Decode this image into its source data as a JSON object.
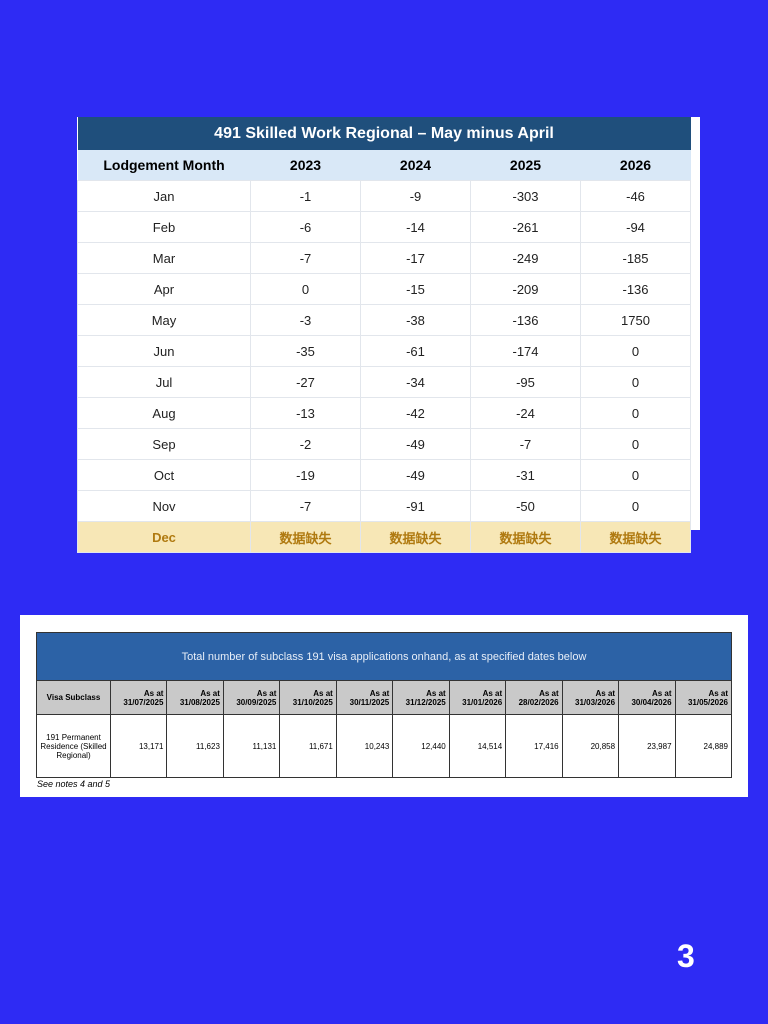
{
  "table1": {
    "title": "491 Skilled Work Regional – May minus April",
    "header": [
      "Lodgement Month",
      "2023",
      "2024",
      "2025",
      "2026"
    ],
    "rows": [
      [
        "Jan",
        "-1",
        "-9",
        "-303",
        "-46"
      ],
      [
        "Feb",
        "-6",
        "-14",
        "-261",
        "-94"
      ],
      [
        "Mar",
        "-7",
        "-17",
        "-249",
        "-185"
      ],
      [
        "Apr",
        "0",
        "-15",
        "-209",
        "-136"
      ],
      [
        "May",
        "-3",
        "-38",
        "-136",
        "1750"
      ],
      [
        "Jun",
        "-35",
        "-61",
        "-174",
        "0"
      ],
      [
        "Jul",
        "-27",
        "-34",
        "-95",
        "0"
      ],
      [
        "Aug",
        "-13",
        "-42",
        "-24",
        "0"
      ],
      [
        "Sep",
        "-2",
        "-49",
        "-7",
        "0"
      ],
      [
        "Oct",
        "-19",
        "-49",
        "-31",
        "0"
      ],
      [
        "Nov",
        "-7",
        "-91",
        "-50",
        "0"
      ],
      [
        "Dec",
        "数据缺失",
        "数据缺失",
        "数据缺失",
        "数据缺失"
      ]
    ]
  },
  "table2": {
    "title": "Total number of subclass 191 visa applications onhand, as at specified dates below",
    "corner": "Visa Subclass",
    "header": [
      {
        "label": "As at",
        "date": "31/07/2025"
      },
      {
        "label": "As at",
        "date": "31/08/2025"
      },
      {
        "label": "As at",
        "date": "30/09/2025"
      },
      {
        "label": "As at",
        "date": "31/10/2025"
      },
      {
        "label": "As at",
        "date": "30/11/2025"
      },
      {
        "label": "As at",
        "date": "31/12/2025"
      },
      {
        "label": "As at",
        "date": "31/01/2026"
      },
      {
        "label": "As at",
        "date": "28/02/2026"
      },
      {
        "label": "As at",
        "date": "31/03/2026"
      },
      {
        "label": "As at",
        "date": "30/04/2026"
      },
      {
        "label": "As at",
        "date": "31/05/2026"
      }
    ],
    "rows": [
      [
        "191 Permanent Residence (Skilled Regional)",
        "13,171",
        "11,623",
        "11,131",
        "11,671",
        "10,243",
        "12,440",
        "14,514",
        "17,416",
        "20,858",
        "23,987",
        "24,889"
      ]
    ],
    "note": "See notes 4 and 5"
  },
  "page_number": "3"
}
